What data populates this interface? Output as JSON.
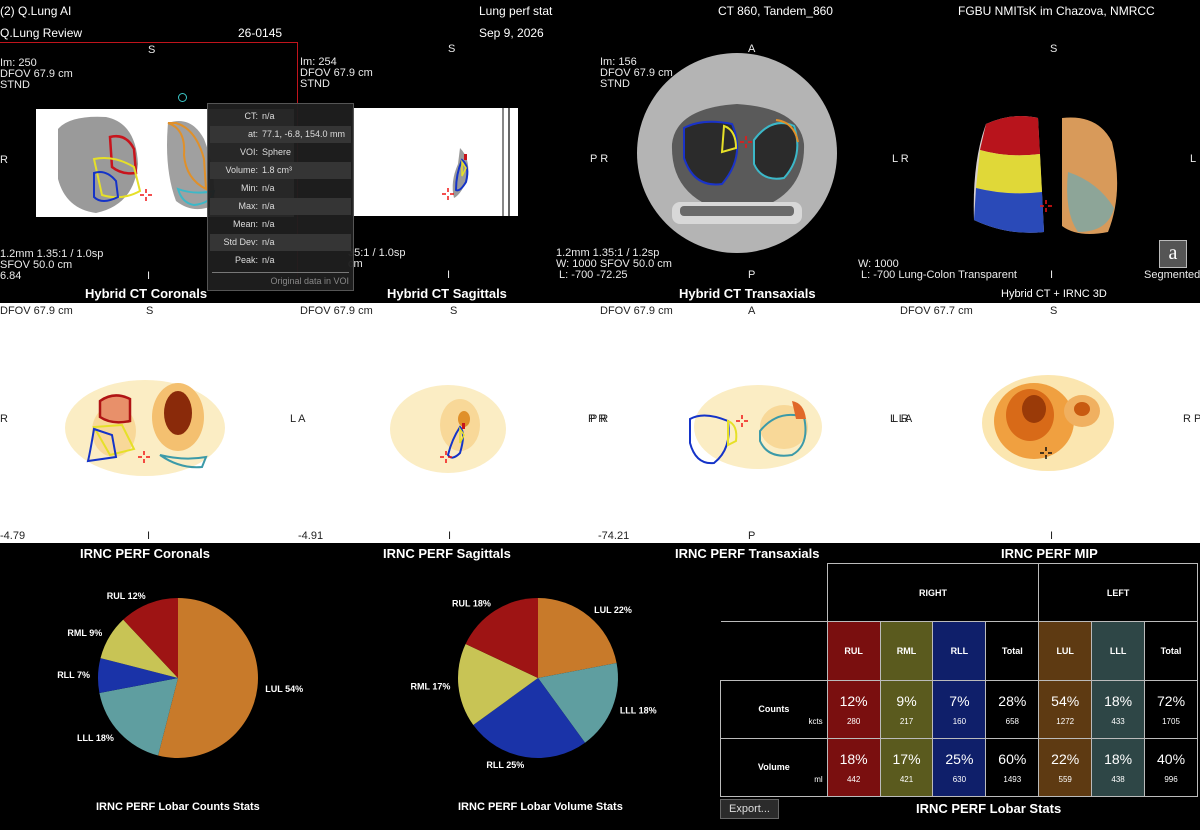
{
  "header": {
    "app_title": "(2) Q.Lung AI",
    "review_name": "Q.Lung Review",
    "patient_id": "26-0145",
    "study_desc": "Lung perf stat",
    "study_date": "Sep 9, 2026",
    "series_ct": "CT 860, Tandem_860",
    "institution": "FGBU NMITsK im Chazova, NMRCC"
  },
  "top_row": {
    "coronal": {
      "orient_top": "S",
      "orient_left": "R",
      "orient_bottom": "I",
      "info": "Im: 250\nDFOV 67.9 cm\nSTND",
      "bottom_info": "1.2mm 1.35:1 / 1.0sp\nSFOV 50.0 cm\n6.84",
      "title": "Hybrid CT Coronals"
    },
    "sagittal": {
      "orient_top": "S",
      "orient_left": "A",
      "orient_bottom": "I",
      "info": "Im: 254\nDFOV 67.9 cm\nSTND",
      "bottom_info": "35:1 / 1.0sp\ncm",
      "title": "Hybrid CT Sagittals"
    },
    "transaxial": {
      "orient_top": "A",
      "orient_left": "P R",
      "orient_bottom": "P",
      "info": "Im: 156\nDFOV 67.9 cm\nSTND",
      "bottom_info": "1.2mm 1.35:1 / 1.2sp\nW: 1000 SFOV 50.0 cm\n L: -700 -72.25",
      "title": "Hybrid CT Transaxials"
    },
    "volume3d": {
      "orient_top": "S",
      "orient_left": "L R",
      "orient_right": "L",
      "orient_bottom": "I",
      "bottom_info": "W: 1000\n L: -700 Lung-Colon Transparent",
      "segmented": "Segmented",
      "badge": "a",
      "title": "Hybrid CT + IRNC 3D"
    },
    "popup": {
      "rows": [
        {
          "k": "CT:",
          "v": "n/a"
        },
        {
          "k": "at:",
          "v": "77.1, -6.8, 154.0 mm"
        },
        {
          "k": "VOI:",
          "v": "Sphere"
        },
        {
          "k": "Volume:",
          "v": "1.8 cm³"
        },
        {
          "k": "Min:",
          "v": "n/a"
        },
        {
          "k": "Max:",
          "v": "n/a"
        },
        {
          "k": "Mean:",
          "v": "n/a"
        },
        {
          "k": "Std Dev:",
          "v": "n/a"
        },
        {
          "k": "Peak:",
          "v": "n/a"
        }
      ],
      "footer": "Original data in VOI"
    }
  },
  "mid_row": {
    "coronal": {
      "dfov": "DFOV 67.9 cm",
      "top": "S",
      "left": "R",
      "right": "L A",
      "bottom": "I",
      "num": "-4.79",
      "title": "IRNC PERF Coronals"
    },
    "sagittal": {
      "dfov": "DFOV 67.9 cm",
      "top": "S",
      "right": "P R",
      "bottom": "I",
      "num": "-4.91",
      "title": "IRNC PERF Sagittals"
    },
    "transaxial": {
      "dfov": "DFOV 67.9 cm",
      "top": "A",
      "right": "L LA",
      "bottom": "P",
      "num": "-74.21",
      "title": "IRNC PERF Transaxials"
    },
    "mip": {
      "dfov": "DFOV 67.7 cm",
      "top": "S",
      "right": "R P",
      "bottom": "I",
      "title": "IRNC PERF MIP"
    }
  },
  "pie_counts": {
    "caption": "IRNC PERF Lobar Counts Stats",
    "slices": [
      {
        "label": "LUL 54%",
        "value": 54,
        "color": "#c87a2a"
      },
      {
        "label": "LLL 18%",
        "value": 18,
        "color": "#5f9ea0"
      },
      {
        "label": "RLL 7%",
        "value": 7,
        "color": "#1a33a8"
      },
      {
        "label": "RML 9%",
        "value": 9,
        "color": "#c8c455"
      },
      {
        "label": "RUL 12%",
        "value": 12,
        "color": "#9e1414"
      }
    ]
  },
  "pie_volume": {
    "caption": "IRNC PERF Lobar Volume Stats",
    "slices": [
      {
        "label": "LUL 22%",
        "value": 22,
        "color": "#c87a2a"
      },
      {
        "label": "LLL 18%",
        "value": 18,
        "color": "#5f9ea0"
      },
      {
        "label": "RLL 25%",
        "value": 25,
        "color": "#1a33a8"
      },
      {
        "label": "RML 17%",
        "value": 17,
        "color": "#c8c455"
      },
      {
        "label": "RUL 18%",
        "value": 18,
        "color": "#9e1414"
      }
    ]
  },
  "stats_table": {
    "caption": "IRNC PERF Lobar Stats",
    "export_label": "Export...",
    "right_label": "RIGHT",
    "left_label": "LEFT",
    "columns": [
      {
        "label": "RUL",
        "color": "#7a0f0f"
      },
      {
        "label": "RML",
        "color": "#5a5a1e"
      },
      {
        "label": "RLL",
        "color": "#0f1f6a"
      },
      {
        "label": "Total",
        "color": "#000000"
      },
      {
        "label": "LUL",
        "color": "#5e3a12"
      },
      {
        "label": "LLL",
        "color": "#2e4646"
      },
      {
        "label": "Total",
        "color": "#000000"
      }
    ],
    "rows": [
      {
        "label": "Counts",
        "unit": "kcts",
        "pct": [
          "12%",
          "9%",
          "7%",
          "28%",
          "54%",
          "18%",
          "72%"
        ],
        "abs": [
          "280",
          "217",
          "160",
          "658",
          "1272",
          "433",
          "1705"
        ]
      },
      {
        "label": "Volume",
        "unit": "ml",
        "pct": [
          "18%",
          "17%",
          "25%",
          "60%",
          "22%",
          "18%",
          "40%"
        ],
        "abs": [
          "442",
          "421",
          "630",
          "1493",
          "559",
          "438",
          "996"
        ]
      }
    ]
  }
}
